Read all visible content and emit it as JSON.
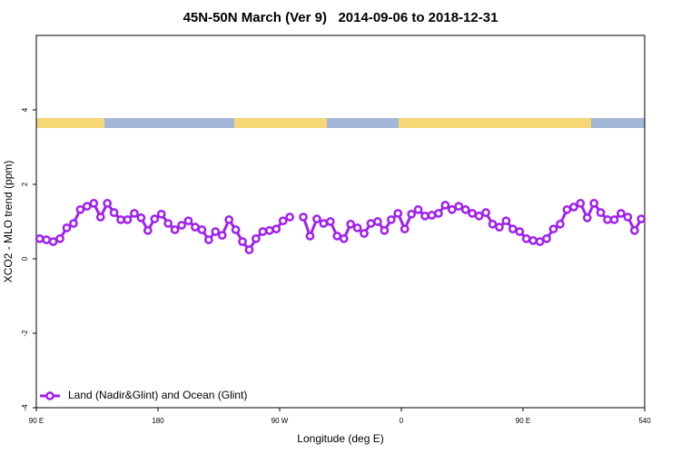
{
  "chart_data": {
    "type": "line",
    "title": "45N-50N March (Ver 9)   2014-09-06 to 2018-12-31",
    "x_label": "Longitude (deg E)",
    "y_label": "XCO2 - MLO trend (ppm)",
    "x": [
      92.5,
      97.5,
      102.5,
      107.5,
      112.5,
      117.5,
      122.5,
      127.5,
      132.5,
      137.5,
      142.5,
      147.5,
      152.5,
      157.5,
      162.5,
      167.5,
      172.5,
      177.5,
      182.5,
      187.5,
      192.5,
      197.5,
      202.5,
      207.5,
      212.5,
      217.5,
      222.5,
      227.5,
      232.5,
      237.5,
      242.5,
      247.5,
      252.5,
      257.5,
      262.5,
      267.5,
      272.5,
      277.5,
      282.5,
      287.5,
      292.5,
      297.5,
      302.5,
      307.5,
      312.5,
      317.5,
      322.5,
      327.5,
      332.5,
      337.5,
      342.5,
      347.5,
      352.5,
      357.5,
      362.5,
      367.5,
      372.5,
      377.5,
      382.5,
      387.5,
      392.5,
      397.5,
      402.5,
      407.5,
      412.5,
      417.5,
      422.5,
      427.5,
      432.5,
      437.5,
      442.5,
      447.5,
      452.5,
      457.5,
      462.5,
      467.5,
      472.5,
      477.5,
      482.5,
      487.5,
      492.5,
      497.5,
      502.5,
      507.5,
      512.5,
      517.5,
      522.5,
      527.5,
      532.5,
      537.5
    ],
    "series": [
      {
        "name": "Land (Nadir&Glint) and Ocean (Glint)",
        "color": "#a020f0",
        "values": [
          0.54,
          0.51,
          0.46,
          0.54,
          0.83,
          0.95,
          1.32,
          1.41,
          1.49,
          1.12,
          1.49,
          1.24,
          1.05,
          1.05,
          1.22,
          1.1,
          0.76,
          1.07,
          1.2,
          0.95,
          0.78,
          0.9,
          1.02,
          0.85,
          0.78,
          0.51,
          0.73,
          0.63,
          1.05,
          0.78,
          0.46,
          0.24,
          0.54,
          0.73,
          0.76,
          0.8,
          1.02,
          1.12,
          null,
          1.12,
          0.61,
          1.07,
          0.95,
          1.0,
          0.61,
          0.54,
          0.93,
          0.83,
          0.68,
          0.95,
          1.0,
          0.76,
          1.05,
          1.22,
          0.8,
          1.2,
          1.32,
          1.15,
          1.17,
          1.22,
          1.44,
          1.32,
          1.41,
          1.32,
          1.22,
          1.15,
          1.24,
          0.93,
          0.85,
          1.02,
          0.8,
          0.73,
          0.54,
          0.49,
          0.46,
          0.54,
          0.8,
          0.93,
          1.32,
          1.39,
          1.49,
          1.1,
          1.49,
          1.24,
          1.05,
          1.05,
          1.22,
          1.12,
          0.76,
          1.07
        ]
      }
    ],
    "xlim": [
      90,
      540
    ],
    "xticks": [
      {
        "value": 90,
        "label": "90 E"
      },
      180,
      {
        "value": 270,
        "label": "90 W"
      },
      {
        "value": 360,
        "label": "0"
      },
      {
        "value": 450,
        "label": "90 E"
      },
      540
    ],
    "ylim": [
      -4,
      6
    ],
    "yticks": [
      -4,
      -2,
      0,
      2,
      4
    ],
    "legend": "bottom-left"
  }
}
